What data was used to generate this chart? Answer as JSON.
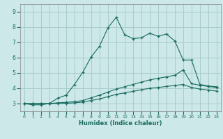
{
  "xlabel": "Humidex (Indice chaleur)",
  "bg_color": "#cce8e8",
  "grid_color": "#aacccc",
  "line_color": "#1a6b60",
  "xlim": [
    -0.5,
    23.5
  ],
  "ylim": [
    2.5,
    9.5
  ],
  "yticks": [
    3,
    4,
    5,
    6,
    7,
    8,
    9
  ],
  "xticks": [
    0,
    1,
    2,
    3,
    4,
    5,
    6,
    7,
    8,
    9,
    10,
    11,
    12,
    13,
    14,
    15,
    16,
    17,
    18,
    19,
    20,
    21,
    22,
    23
  ],
  "line1_x": [
    0,
    1,
    2,
    3,
    4,
    5,
    6,
    7,
    8,
    9,
    10,
    11,
    12,
    13,
    14,
    15,
    16,
    17,
    18,
    19,
    20,
    21,
    22,
    23
  ],
  "line1_y": [
    3.0,
    2.92,
    2.92,
    3.0,
    3.35,
    3.55,
    4.25,
    5.05,
    6.05,
    6.75,
    7.95,
    8.65,
    7.5,
    7.25,
    7.3,
    7.6,
    7.4,
    7.55,
    7.1,
    5.85,
    5.85,
    4.25,
    4.15,
    4.1
  ],
  "line2_x": [
    0,
    1,
    2,
    3,
    4,
    5,
    6,
    7,
    8,
    9,
    10,
    11,
    12,
    13,
    14,
    15,
    16,
    17,
    18,
    19,
    20,
    21,
    22,
    23
  ],
  "line2_y": [
    3.0,
    3.0,
    3.0,
    3.0,
    3.05,
    3.08,
    3.12,
    3.2,
    3.38,
    3.55,
    3.75,
    3.95,
    4.1,
    4.25,
    4.4,
    4.55,
    4.65,
    4.75,
    4.85,
    5.2,
    4.3,
    4.2,
    4.12,
    4.05
  ],
  "line3_x": [
    0,
    1,
    2,
    3,
    4,
    5,
    6,
    7,
    8,
    9,
    10,
    11,
    12,
    13,
    14,
    15,
    16,
    17,
    18,
    19,
    20,
    21,
    22,
    23
  ],
  "line3_y": [
    3.0,
    3.0,
    3.0,
    3.0,
    3.0,
    3.02,
    3.05,
    3.1,
    3.2,
    3.3,
    3.45,
    3.6,
    3.7,
    3.8,
    3.9,
    4.0,
    4.05,
    4.12,
    4.18,
    4.25,
    4.05,
    3.95,
    3.88,
    3.82
  ]
}
